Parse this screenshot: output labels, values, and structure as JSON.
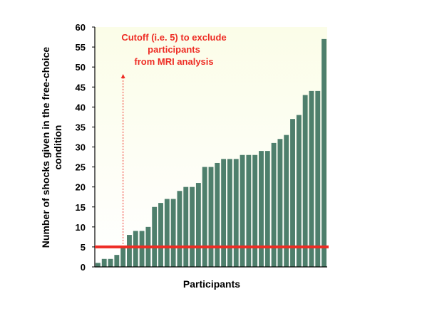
{
  "chart_data": {
    "type": "bar",
    "xlabel": "Participants",
    "ylabel_line1": "Number of shocks given in the free-choice",
    "ylabel_line2": "condition",
    "ylim": [
      0,
      60
    ],
    "yticks": [
      0,
      5,
      10,
      15,
      20,
      25,
      30,
      35,
      40,
      45,
      50,
      55,
      60
    ],
    "values": [
      1,
      2,
      2,
      3,
      5,
      8,
      9,
      9,
      10,
      15,
      16,
      17,
      17,
      19,
      20,
      20,
      21,
      25,
      25,
      26,
      27,
      27,
      27,
      28,
      28,
      28,
      29,
      29,
      31,
      32,
      33,
      37,
      38,
      43,
      44,
      44,
      57
    ],
    "bar_color": "#4e7f6c",
    "background_gradient": [
      "#fbfde8",
      "#ffffff"
    ],
    "cutoff": {
      "value": 5,
      "color": "#ee2c24",
      "annotation_line1": "Cutoff (i.e. 5) to exclude",
      "annotation_line2": "participants",
      "annotation_line3": "from MRI analysis",
      "arrow_at_bar_index": 4
    },
    "grid": false,
    "legend": "none"
  }
}
